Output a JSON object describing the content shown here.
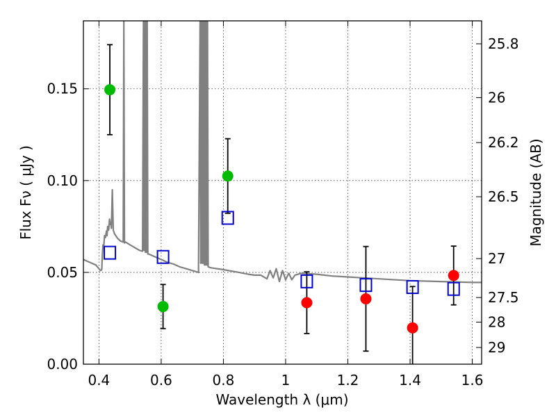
{
  "chart_data": {
    "type": "scatter",
    "xlabel": "Wavelength  λ (μm)",
    "ylabel": "Flux  Fν  ( μJy )",
    "y2label": "Magnitude (AB)",
    "xlim": [
      0.35,
      1.63
    ],
    "ylim": [
      0.0,
      0.187
    ],
    "grid": true,
    "x_ticks": [
      0.4,
      0.6,
      0.8,
      1.0,
      1.2,
      1.4,
      1.6
    ],
    "x_tick_labels": [
      "0.4",
      "0.6",
      "0.8",
      "1",
      "1.2",
      "1.4",
      "1.6"
    ],
    "y_ticks": [
      0.0,
      0.05,
      0.1,
      0.15
    ],
    "y_tick_labels": [
      "0.00",
      "0.05",
      "0.10",
      "0.15"
    ],
    "y2_ticks": [
      {
        "label": "25.8",
        "flux": 0.1745
      },
      {
        "label": "26",
        "flux": 0.1452
      },
      {
        "label": "26.2",
        "flux": 0.1207
      },
      {
        "label": "26.5",
        "flux": 0.0912
      },
      {
        "label": "27",
        "flux": 0.0575
      },
      {
        "label": "27.5",
        "flux": 0.0363
      },
      {
        "label": "28",
        "flux": 0.0229
      },
      {
        "label": "29",
        "flux": 0.0091
      }
    ],
    "series": [
      {
        "name": "green points",
        "color": "#00bb00",
        "marker": "circle",
        "points": [
          {
            "x": 0.435,
            "y": 0.1495,
            "err": 0.0245
          },
          {
            "x": 0.606,
            "y": 0.0314,
            "err": 0.012
          },
          {
            "x": 0.814,
            "y": 0.1025,
            "err": 0.0203
          }
        ]
      },
      {
        "name": "red points",
        "color": "#ff0000",
        "marker": "circle",
        "points": [
          {
            "x": 1.068,
            "y": 0.0335,
            "err": 0.0168
          },
          {
            "x": 1.258,
            "y": 0.0356,
            "err": 0.0285
          },
          {
            "x": 1.408,
            "y": 0.0198,
            "err": 0.0225
          },
          {
            "x": 1.54,
            "y": 0.0483,
            "err": 0.016
          }
        ]
      },
      {
        "name": "model photometry",
        "color": "#0000cc",
        "marker": "square",
        "points": [
          {
            "x": 0.435,
            "y": 0.0607
          },
          {
            "x": 0.606,
            "y": 0.0584
          },
          {
            "x": 0.814,
            "y": 0.0797
          },
          {
            "x": 1.068,
            "y": 0.0451
          },
          {
            "x": 1.258,
            "y": 0.0431
          },
          {
            "x": 1.408,
            "y": 0.042
          },
          {
            "x": 1.54,
            "y": 0.041
          }
        ]
      },
      {
        "name": "model spectrum",
        "color": "#808080",
        "type": "line",
        "x": [
          0.35,
          0.37,
          0.39,
          0.405,
          0.409,
          0.411,
          0.413,
          0.415,
          0.418,
          0.421,
          0.424,
          0.426,
          0.428,
          0.431,
          0.434,
          0.436,
          0.438,
          0.44,
          0.443,
          0.446,
          0.45,
          0.46,
          0.47,
          0.478,
          0.48,
          0.482,
          0.485,
          0.49,
          0.5,
          0.51,
          0.52,
          0.53,
          0.54,
          0.543,
          0.545,
          0.547,
          0.549,
          0.551,
          0.553,
          0.555,
          0.557,
          0.56,
          0.58,
          0.6,
          0.62,
          0.64,
          0.66,
          0.68,
          0.7,
          0.72,
          0.725,
          0.727,
          0.729,
          0.731,
          0.733,
          0.735,
          0.737,
          0.739,
          0.741,
          0.743,
          0.745,
          0.747,
          0.749,
          0.751,
          0.76,
          0.8,
          0.85,
          0.88,
          0.9,
          0.92,
          0.94,
          0.95,
          0.96,
          0.97,
          0.98,
          0.99,
          1.0,
          1.01,
          1.02,
          1.03,
          1.05,
          1.1,
          1.15,
          1.2,
          1.3,
          1.4,
          1.5,
          1.6,
          1.63
        ],
        "y": [
          0.057,
          0.0555,
          0.054,
          0.051,
          0.0515,
          0.06,
          0.065,
          0.063,
          0.07,
          0.069,
          0.0725,
          0.07,
          0.075,
          0.073,
          0.079,
          0.076,
          0.077,
          0.074,
          0.095,
          0.073,
          0.071,
          0.0685,
          0.067,
          0.0665,
          0.187,
          0.066,
          0.0665,
          0.066,
          0.065,
          0.064,
          0.063,
          0.062,
          0.0615,
          0.187,
          0.062,
          0.187,
          0.061,
          0.187,
          0.061,
          0.187,
          0.06,
          0.06,
          0.0585,
          0.057,
          0.0555,
          0.0545,
          0.053,
          0.052,
          0.051,
          0.05,
          0.187,
          0.055,
          0.187,
          0.055,
          0.187,
          0.055,
          0.187,
          0.054,
          0.187,
          0.054,
          0.187,
          0.054,
          0.187,
          0.053,
          0.0525,
          0.0515,
          0.05,
          0.049,
          0.0485,
          0.0485,
          0.0465,
          0.051,
          0.047,
          0.052,
          0.045,
          0.051,
          0.046,
          0.0495,
          0.046,
          0.0485,
          0.0495,
          0.049,
          0.048,
          0.0475,
          0.0465,
          0.0455,
          0.045,
          0.0445,
          0.0445
        ]
      }
    ]
  }
}
